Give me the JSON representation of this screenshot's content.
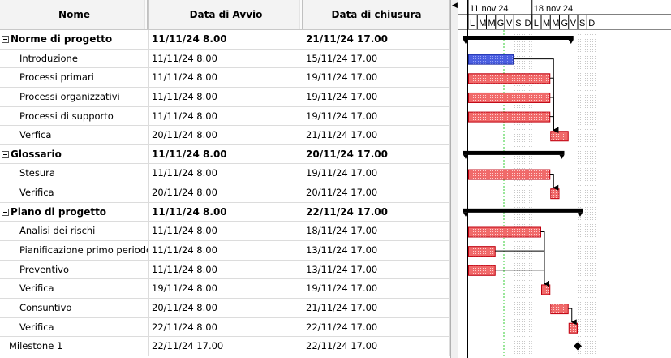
{
  "columns": {
    "name": "Nome",
    "start": "Data di Avvio",
    "end": "Data di chiusura"
  },
  "rows": [
    {
      "name": "Norme di progetto",
      "start": "11/11/24 8.00",
      "end": "21/11/24 17.00",
      "type": "summary"
    },
    {
      "name": "Introduzione",
      "start": "11/11/24 8.00",
      "end": "15/11/24 17.00",
      "type": "task"
    },
    {
      "name": "Processi primari",
      "start": "11/11/24 8.00",
      "end": "19/11/24 17.00",
      "type": "task"
    },
    {
      "name": "Processi organizzativi",
      "start": "11/11/24 8.00",
      "end": "19/11/24 17.00",
      "type": "task"
    },
    {
      "name": "Processi di supporto",
      "start": "11/11/24 8.00",
      "end": "19/11/24 17.00",
      "type": "task"
    },
    {
      "name": "Verfica",
      "start": "20/11/24 8.00",
      "end": "21/11/24 17.00",
      "type": "task"
    },
    {
      "name": "Glossario",
      "start": "11/11/24 8.00",
      "end": "20/11/24 17.00",
      "type": "summary"
    },
    {
      "name": "Stesura",
      "start": "11/11/24 8.00",
      "end": "19/11/24 17.00",
      "type": "task"
    },
    {
      "name": "Verifica",
      "start": "20/11/24 8.00",
      "end": "20/11/24 17.00",
      "type": "task"
    },
    {
      "name": "Piano di progetto",
      "start": "11/11/24 8.00",
      "end": "22/11/24 17.00",
      "type": "summary"
    },
    {
      "name": "Analisi dei rischi",
      "start": "11/11/24 8.00",
      "end": "18/11/24 17.00",
      "type": "task"
    },
    {
      "name": "Pianificazione primo periodo",
      "start": "11/11/24 8.00",
      "end": "13/11/24 17.00",
      "type": "task"
    },
    {
      "name": "Preventivo",
      "start": "11/11/24 8.00",
      "end": "13/11/24 17.00",
      "type": "task"
    },
    {
      "name": "Verifica",
      "start": "19/11/24 8.00",
      "end": "19/11/24 17.00",
      "type": "task"
    },
    {
      "name": "Consuntivo",
      "start": "20/11/24 8.00",
      "end": "21/11/24 17.00",
      "type": "task"
    },
    {
      "name": "Verifica",
      "start": "22/11/24 8.00",
      "end": "22/11/24 17.00",
      "type": "task"
    },
    {
      "name": "Milestone 1",
      "start": "22/11/24 17.00",
      "end": "22/11/24 17.00",
      "type": "milestone"
    }
  ],
  "timeline": {
    "weeks": [
      "11 nov 24",
      "18 nov 24"
    ],
    "days": [
      "L",
      "M",
      "M",
      "G",
      "V",
      "S",
      "D",
      "L",
      "M",
      "M",
      "G",
      "V",
      "S",
      "D"
    ]
  },
  "colors": {
    "task_bar": "#f06a6a",
    "selected_bar": "#4b5fe0",
    "summary_bar": "#000000",
    "today_line": "#33cc33",
    "weekend_fill": "#e6e6e6"
  },
  "icons": {
    "collapse": "minus-box-icon",
    "splitter": "arrow-left-icon"
  }
}
